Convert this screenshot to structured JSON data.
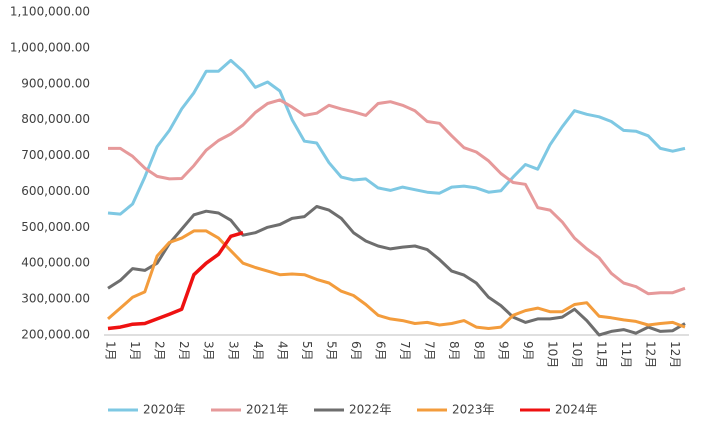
{
  "chart_data": {
    "type": "line",
    "categories": [
      "1月",
      null,
      "1月",
      null,
      "2月",
      null,
      "2月",
      null,
      "3月",
      null,
      "3月",
      null,
      "4月",
      null,
      "4月",
      null,
      "5月",
      null,
      "5月",
      null,
      "6月",
      null,
      "6月",
      null,
      "7月",
      null,
      "7月",
      null,
      "8月",
      null,
      "8月",
      null,
      "9月",
      null,
      "9月",
      null,
      "10月",
      null,
      "10月",
      null,
      "11月",
      null,
      "11月",
      null,
      "12月",
      null,
      "12月",
      null
    ],
    "series": [
      {
        "name": "2020年",
        "color": "#7ec8e3",
        "values": [
          540000,
          537000,
          565000,
          640000,
          725000,
          770000,
          830000,
          875000,
          935000,
          935000,
          965000,
          935000,
          890000,
          905000,
          880000,
          800000,
          740000,
          735000,
          680000,
          640000,
          632000,
          635000,
          610000,
          603000,
          612000,
          605000,
          598000,
          595000,
          612000,
          615000,
          610000,
          598000,
          602000,
          640000,
          675000,
          662000,
          730000,
          780000,
          825000,
          815000,
          808000,
          795000,
          770000,
          768000,
          755000,
          720000,
          712000,
          720000
        ]
      },
      {
        "name": "2021年",
        "color": "#e6999a",
        "values": [
          720000,
          720000,
          698000,
          665000,
          642000,
          635000,
          636000,
          672000,
          715000,
          742000,
          760000,
          785000,
          820000,
          845000,
          855000,
          835000,
          812000,
          818000,
          840000,
          830000,
          822000,
          812000,
          845000,
          850000,
          840000,
          825000,
          795000,
          790000,
          755000,
          722000,
          710000,
          685000,
          650000,
          625000,
          620000,
          555000,
          548000,
          515000,
          470000,
          440000,
          415000,
          372000,
          345000,
          335000,
          315000,
          318000,
          318000,
          330000
        ]
      },
      {
        "name": "2022年",
        "color": "#6e6e6e",
        "values": [
          330000,
          352000,
          385000,
          380000,
          400000,
          455000,
          495000,
          535000,
          545000,
          540000,
          520000,
          478000,
          485000,
          500000,
          508000,
          525000,
          530000,
          558000,
          548000,
          525000,
          485000,
          462000,
          448000,
          440000,
          445000,
          448000,
          438000,
          410000,
          378000,
          367000,
          345000,
          305000,
          282000,
          250000,
          235000,
          245000,
          245000,
          250000,
          272000,
          240000,
          200000,
          210000,
          215000,
          205000,
          222000,
          210000,
          212000,
          232000
        ]
      },
      {
        "name": "2023年",
        "color": "#f39c3c",
        "values": [
          245000,
          275000,
          305000,
          320000,
          420000,
          458000,
          470000,
          490000,
          490000,
          470000,
          435000,
          400000,
          388000,
          378000,
          368000,
          370000,
          368000,
          355000,
          345000,
          322000,
          310000,
          285000,
          255000,
          245000,
          240000,
          232000,
          235000,
          228000,
          232000,
          240000,
          222000,
          218000,
          222000,
          255000,
          268000,
          275000,
          265000,
          265000,
          285000,
          290000,
          252000,
          248000,
          242000,
          238000,
          228000,
          232000,
          235000,
          222000
        ]
      },
      {
        "name": "2024年",
        "color": "#ee1111",
        "values": [
          218000,
          222000,
          230000,
          232000,
          245000,
          258000,
          272000,
          368000,
          400000,
          425000,
          475000,
          485000,
          null,
          null,
          null,
          null,
          null,
          null,
          null,
          null,
          null,
          null,
          null,
          null,
          null,
          null,
          null,
          null,
          null,
          null,
          null,
          null,
          null,
          null,
          null,
          null,
          null,
          null,
          null,
          null,
          null,
          null,
          null,
          null,
          null,
          null,
          null,
          null
        ]
      }
    ],
    "ylim": [
      200000,
      1100000
    ],
    "yticks": [
      {
        "value": 200000,
        "label": "200,000.00"
      },
      {
        "value": 300000,
        "label": "300,000.00"
      },
      {
        "value": 400000,
        "label": "400,000.00"
      },
      {
        "value": 500000,
        "label": "500,000.00"
      },
      {
        "value": 600000,
        "label": "600,000.00"
      },
      {
        "value": 700000,
        "label": "700,000.00"
      },
      {
        "value": 800000,
        "label": "800,000.00"
      },
      {
        "value": 900000,
        "label": "900,000.00"
      },
      {
        "value": 1000000,
        "label": "1,000,000.00"
      },
      {
        "value": 1100000,
        "label": "1,100,000.00"
      }
    ],
    "legend": "bottom"
  }
}
